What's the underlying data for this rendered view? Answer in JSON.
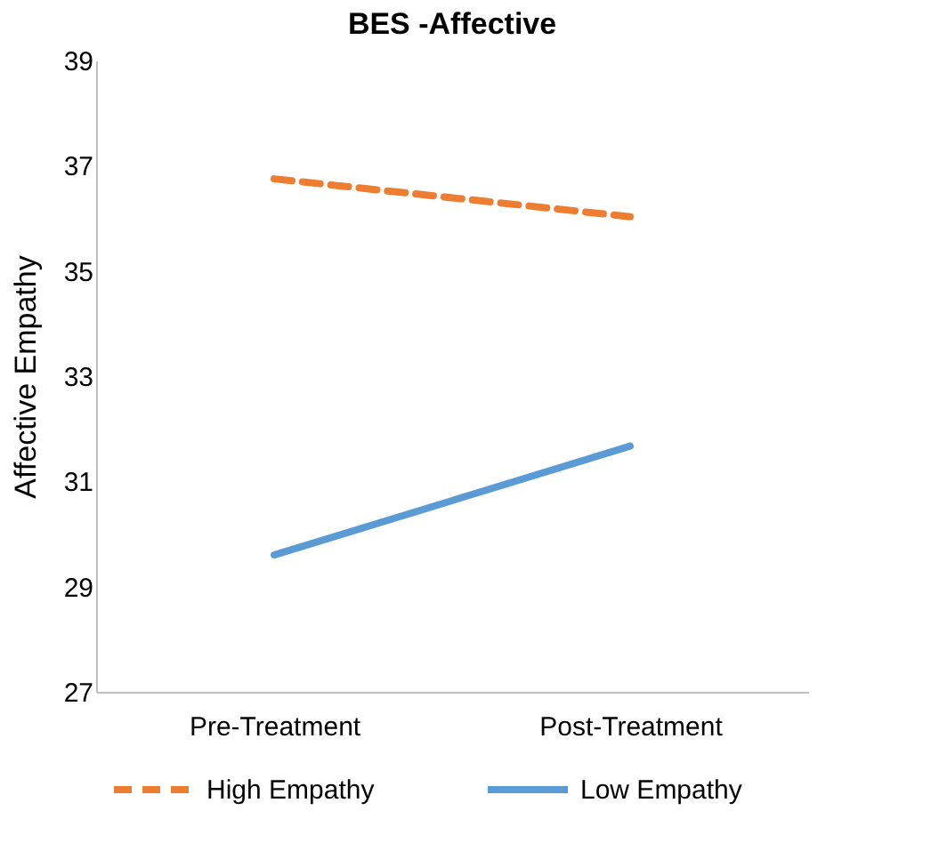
{
  "chart_data": {
    "type": "line",
    "title": "BES -Affective",
    "ylabel": "Affective Empathy",
    "categories": [
      "Pre-Treatment",
      "Post-Treatment"
    ],
    "series": [
      {
        "name": "High Empathy",
        "color": "#ed7d31",
        "values": [
          36.75,
          36.03
        ],
        "line_style": "dashed"
      },
      {
        "name": "Low Empathy",
        "color": "#5b9bd5",
        "values": [
          29.6,
          31.67
        ],
        "line_style": "solid"
      }
    ],
    "ylim": [
      27,
      39
    ],
    "yticks": [
      27,
      29,
      31,
      33,
      35,
      37,
      39
    ],
    "grid": false,
    "legend": "bottom",
    "marker": "none"
  }
}
